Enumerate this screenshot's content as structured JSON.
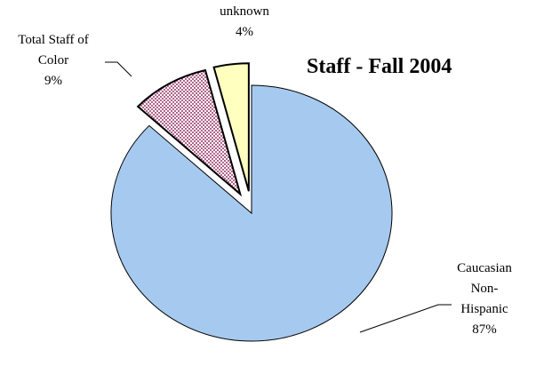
{
  "chart_data": {
    "type": "pie",
    "title": "Staff - Fall 2004",
    "categories": [
      "Caucasian Non-Hispanic",
      "Total Staff of Color",
      "unknown"
    ],
    "values": [
      87,
      9,
      4
    ],
    "value_labels": [
      "87%",
      "9%",
      "4%"
    ],
    "colors": [
      "#a6c9ef",
      "#993366",
      "#ffffc0"
    ],
    "exploded": [
      false,
      true,
      true
    ]
  }
}
